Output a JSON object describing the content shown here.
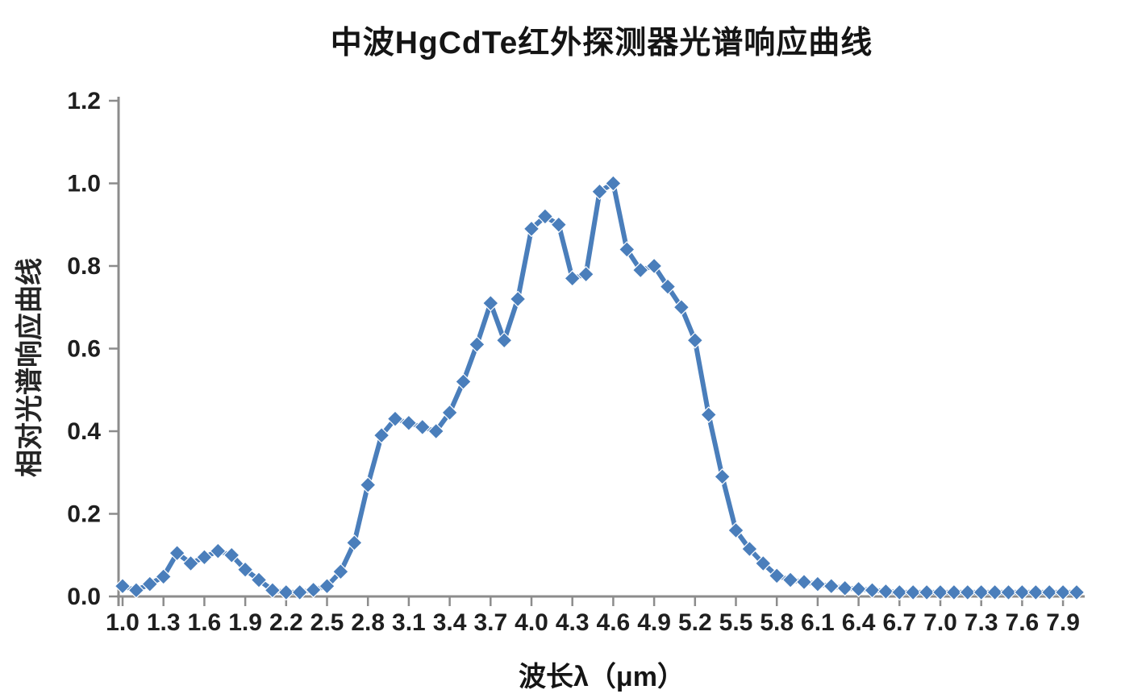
{
  "page": {
    "background": "#ffffff"
  },
  "chart_data": {
    "type": "line",
    "title": "中波HgCdTe红外探测器光谱响应曲线",
    "xlabel": "波长λ（μm）",
    "ylabel": "相对光谱响应曲线",
    "legend": "none",
    "grid": "off",
    "marker": "diamond",
    "series_color": "#4A7EBB",
    "marker_outline_color": "#FFFFFF",
    "axis_color": "#8C8C8C",
    "tick_label_color": "#1F1F1F",
    "xlim": [
      1.0,
      8.0
    ],
    "ylim": [
      0.0,
      1.2
    ],
    "x_tick_labels": [
      "1.0",
      "1.3",
      "1.6",
      "1.9",
      "2.2",
      "2.5",
      "2.8",
      "3.1",
      "3.4",
      "3.7",
      "4.0",
      "4.3",
      "4.6",
      "4.9",
      "5.2",
      "5.5",
      "5.8",
      "6.1",
      "6.4",
      "6.7",
      "7.0",
      "7.3",
      "7.6",
      "7.9"
    ],
    "y_tick_labels": [
      "0.0",
      "0.2",
      "0.4",
      "0.6",
      "0.8",
      "1.0",
      "1.2"
    ],
    "x": [
      1.0,
      1.1,
      1.2,
      1.3,
      1.4,
      1.5,
      1.6,
      1.7,
      1.8,
      1.9,
      2.0,
      2.1,
      2.2,
      2.3,
      2.4,
      2.5,
      2.6,
      2.7,
      2.8,
      2.9,
      3.0,
      3.1,
      3.2,
      3.3,
      3.4,
      3.5,
      3.6,
      3.7,
      3.8,
      3.9,
      4.0,
      4.1,
      4.2,
      4.3,
      4.4,
      4.5,
      4.6,
      4.7,
      4.8,
      4.9,
      5.0,
      5.1,
      5.2,
      5.3,
      5.4,
      5.5,
      5.6,
      5.7,
      5.8,
      5.9,
      6.0,
      6.1,
      6.2,
      6.3,
      6.4,
      6.5,
      6.6,
      6.7,
      6.8,
      6.9,
      7.0,
      7.1,
      7.2,
      7.3,
      7.4,
      7.5,
      7.6,
      7.7,
      7.8,
      7.9,
      8.0
    ],
    "values": [
      0.025,
      0.015,
      0.03,
      0.048,
      0.105,
      0.08,
      0.095,
      0.11,
      0.1,
      0.065,
      0.04,
      0.015,
      0.01,
      0.01,
      0.016,
      0.025,
      0.06,
      0.13,
      0.27,
      0.39,
      0.43,
      0.42,
      0.41,
      0.4,
      0.445,
      0.52,
      0.61,
      0.71,
      0.62,
      0.72,
      0.89,
      0.92,
      0.9,
      0.77,
      0.78,
      0.98,
      1.0,
      0.84,
      0.79,
      0.8,
      0.75,
      0.7,
      0.62,
      0.44,
      0.29,
      0.16,
      0.115,
      0.08,
      0.05,
      0.04,
      0.035,
      0.03,
      0.025,
      0.02,
      0.018,
      0.015,
      0.012,
      0.01,
      0.01,
      0.01,
      0.01,
      0.01,
      0.01,
      0.01,
      0.01,
      0.01,
      0.01,
      0.01,
      0.01,
      0.01,
      0.01
    ]
  }
}
